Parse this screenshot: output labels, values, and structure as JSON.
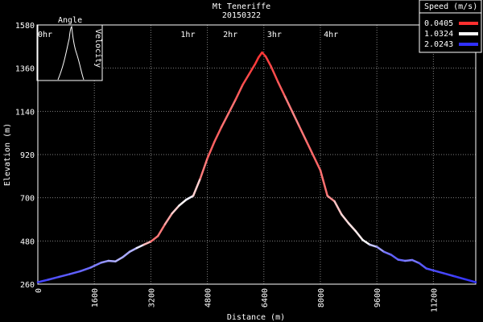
{
  "chart_data": {
    "type": "line",
    "title": "Mt Teneriffe",
    "subtitle": "20150322",
    "xlabel": "Distance (m)",
    "ylabel": "Elevation (m)",
    "xlim": [
      0,
      12400
    ],
    "ylim": [
      260,
      1580
    ],
    "x_ticks": [
      0,
      1600,
      3200,
      4800,
      6400,
      8000,
      9600,
      11200
    ],
    "y_ticks": [
      260,
      480,
      700,
      920,
      1140,
      1360,
      1580
    ],
    "time_ticks": [
      {
        "label": "0hr",
        "x": 0
      },
      {
        "label": "1hr",
        "x": 4250
      },
      {
        "label": "2hr",
        "x": 5450
      },
      {
        "label": "3hr",
        "x": 6700
      },
      {
        "label": "4hr",
        "x": 8300
      }
    ],
    "grid": true,
    "legend": {
      "title": "Speed (m/s)",
      "placement": "top-right",
      "entries": [
        {
          "label": "0.0405",
          "color": "#ff3030"
        },
        {
          "label": "1.0324",
          "color": "#ffffff"
        },
        {
          "label": "2.0243",
          "color": "#3030ff"
        }
      ]
    },
    "inset": {
      "left_label": "Angle",
      "right_label": "Velocity",
      "placement": "top-left"
    },
    "speed_scale": [
      0.0405,
      2.0243
    ],
    "x": [
      0,
      300,
      600,
      900,
      1200,
      1500,
      1800,
      2000,
      2200,
      2400,
      2600,
      2800,
      3000,
      3200,
      3400,
      3600,
      3800,
      4000,
      4200,
      4400,
      4600,
      4800,
      5000,
      5200,
      5400,
      5600,
      5800,
      6000,
      6150,
      6250,
      6350,
      6450,
      6600,
      6800,
      7000,
      7200,
      7400,
      7600,
      7800,
      8000,
      8200,
      8400,
      8600,
      8800,
      9000,
      9200,
      9400,
      9600,
      9800,
      10000,
      10200,
      10400,
      10600,
      10800,
      11000,
      11200,
      11500,
      11800,
      12100,
      12400
    ],
    "y": [
      270,
      283,
      297,
      311,
      326,
      345,
      370,
      379,
      376,
      397,
      425,
      444,
      461,
      477,
      505,
      565,
      620,
      660,
      690,
      710,
      798,
      900,
      985,
      1060,
      1130,
      1200,
      1275,
      1335,
      1380,
      1415,
      1440,
      1420,
      1370,
      1290,
      1215,
      1140,
      1065,
      990,
      915,
      840,
      710,
      682,
      615,
      570,
      530,
      485,
      461,
      450,
      425,
      410,
      385,
      379,
      383,
      367,
      340,
      330,
      315,
      300,
      285,
      270
    ],
    "speed": [
      1.95,
      1.9,
      1.85,
      1.8,
      1.8,
      1.7,
      1.6,
      1.5,
      1.4,
      1.4,
      1.5,
      1.3,
      1.0,
      0.4,
      0.3,
      0.5,
      0.7,
      0.9,
      1.1,
      1.1,
      0.5,
      0.3,
      0.25,
      0.3,
      0.4,
      0.3,
      0.2,
      0.15,
      0.1,
      0.08,
      0.05,
      0.1,
      0.15,
      0.2,
      0.3,
      0.5,
      0.4,
      0.35,
      0.3,
      0.3,
      0.4,
      0.6,
      0.9,
      0.8,
      1.0,
      0.9,
      1.2,
      1.4,
      1.6,
      1.8,
      1.8,
      1.7,
      1.6,
      1.8,
      1.85,
      1.9,
      1.9,
      1.95,
      2.0,
      2.0
    ]
  }
}
